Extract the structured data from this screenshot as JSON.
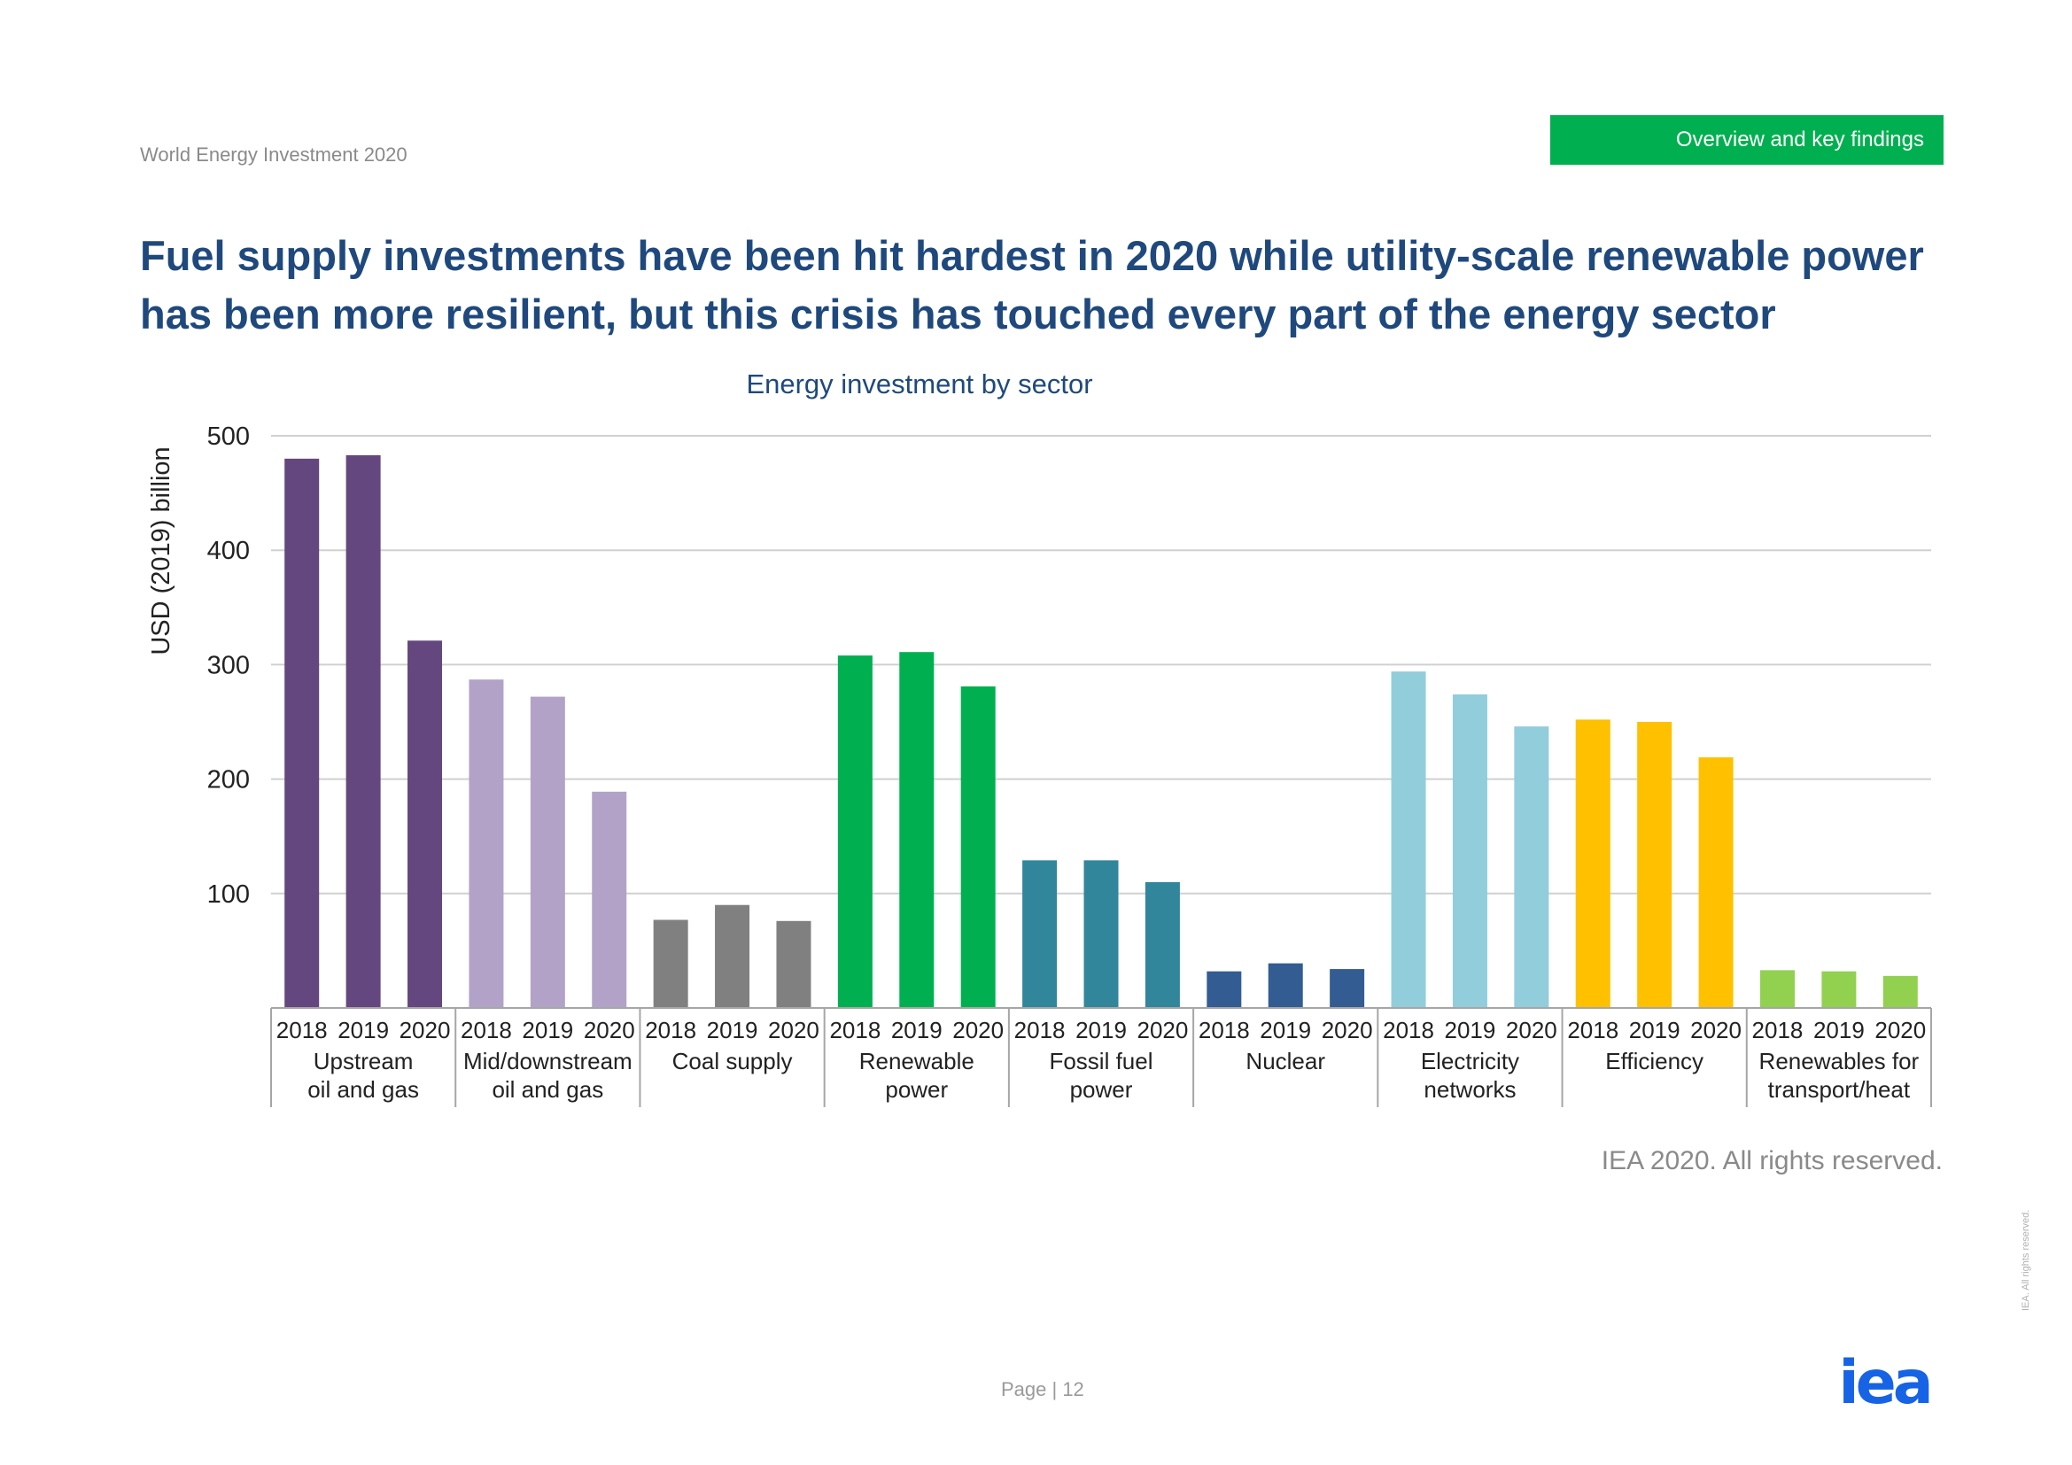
{
  "header": {
    "report_title": "World Energy Investment 2020",
    "section_tab": "Overview and key findings"
  },
  "headline": "Fuel supply investments have been hit hardest in 2020 while utility-scale renewable power has been more resilient, but this crisis has touched every part of the energy sector",
  "chart_data": {
    "type": "bar",
    "title": "Energy investment by sector",
    "ylabel": "USD (2019) billion",
    "xlabel": "",
    "ylim": [
      0,
      500
    ],
    "yticks": [
      100,
      200,
      300,
      400,
      500
    ],
    "grid": true,
    "groups": [
      {
        "label": "Upstream\noil and gas",
        "color": "#65477f",
        "years": [
          "2018",
          "2019",
          "2020"
        ],
        "values": [
          480,
          483,
          321
        ]
      },
      {
        "label": "Mid/downstream\noil and gas",
        "color": "#b2a2c8",
        "years": [
          "2018",
          "2019",
          "2020"
        ],
        "values": [
          287,
          272,
          189
        ]
      },
      {
        "label": "Coal supply",
        "color": "#808080",
        "years": [
          "2018",
          "2019",
          "2020"
        ],
        "values": [
          77,
          90,
          76
        ]
      },
      {
        "label": "Renewable\npower",
        "color": "#00b050",
        "years": [
          "2018",
          "2019",
          "2020"
        ],
        "values": [
          308,
          311,
          281
        ]
      },
      {
        "label": "Fossil fuel\npower",
        "color": "#31869b",
        "years": [
          "2018",
          "2019",
          "2020"
        ],
        "values": [
          129,
          129,
          110
        ]
      },
      {
        "label": "Nuclear",
        "color": "#335d92",
        "years": [
          "2018",
          "2019",
          "2020"
        ],
        "values": [
          32,
          39,
          34
        ]
      },
      {
        "label": "Electricity\nnetworks",
        "color": "#92cddc",
        "years": [
          "2018",
          "2019",
          "2020"
        ],
        "values": [
          294,
          274,
          246
        ]
      },
      {
        "label": "Efficiency",
        "color": "#ffc000",
        "years": [
          "2018",
          "2019",
          "2020"
        ],
        "values": [
          252,
          250,
          219
        ]
      },
      {
        "label": "Renewables for\ntransport/heat",
        "color": "#92d050",
        "years": [
          "2018",
          "2019",
          "2020"
        ],
        "values": [
          33,
          32,
          28
        ]
      }
    ]
  },
  "footer": {
    "rights": "IEA 2020. All rights reserved.",
    "page": "Page | 12",
    "vertical_rights": "IEA. All rights reserved.",
    "logo_text": "iea",
    "logo_color": "#1763e6"
  }
}
